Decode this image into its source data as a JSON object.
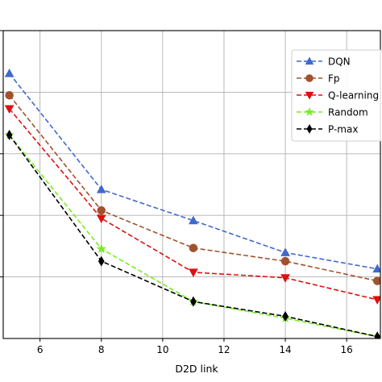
{
  "chart_data": {
    "type": "line",
    "title": "",
    "xlabel": "D2D link",
    "ylabel": "",
    "xlim": [
      4.8,
      17.1
    ],
    "ylim": [
      0,
      100
    ],
    "x_ticks": [
      6,
      8,
      10,
      12,
      14,
      16
    ],
    "x_tick_labels": [
      "6",
      "8",
      "10",
      "12",
      "14",
      "16"
    ],
    "y_grid_values": [
      20,
      40,
      60,
      80,
      100
    ],
    "grid": true,
    "legend_position": "top-right",
    "x": [
      5,
      8,
      11,
      14,
      17
    ],
    "series": [
      {
        "name": "DQN",
        "values": [
          86.1,
          48.4,
          38.3,
          27.9,
          22.6
        ],
        "color": "#4169cc",
        "marker": "triangle-up",
        "linestyle": "dashed"
      },
      {
        "name": "Fp",
        "values": [
          79.0,
          41.6,
          29.4,
          25.1,
          18.7
        ],
        "color": "#a0522d",
        "marker": "circle",
        "linestyle": "dashed"
      },
      {
        "name": "Q-learning",
        "values": [
          74.6,
          39.0,
          21.5,
          19.7,
          12.6
        ],
        "color": "#dd1111",
        "marker": "triangle-down",
        "linestyle": "dashed"
      },
      {
        "name": "Random",
        "values": [
          66.1,
          29.1,
          12.0,
          6.6,
          0.6
        ],
        "color": "#77ee22",
        "marker": "star",
        "linestyle": "dashed"
      },
      {
        "name": "P-max",
        "values": [
          66.1,
          25.1,
          12.0,
          7.2,
          0.6
        ],
        "color": "#000000",
        "marker": "diamond",
        "linestyle": "dashed"
      }
    ]
  }
}
